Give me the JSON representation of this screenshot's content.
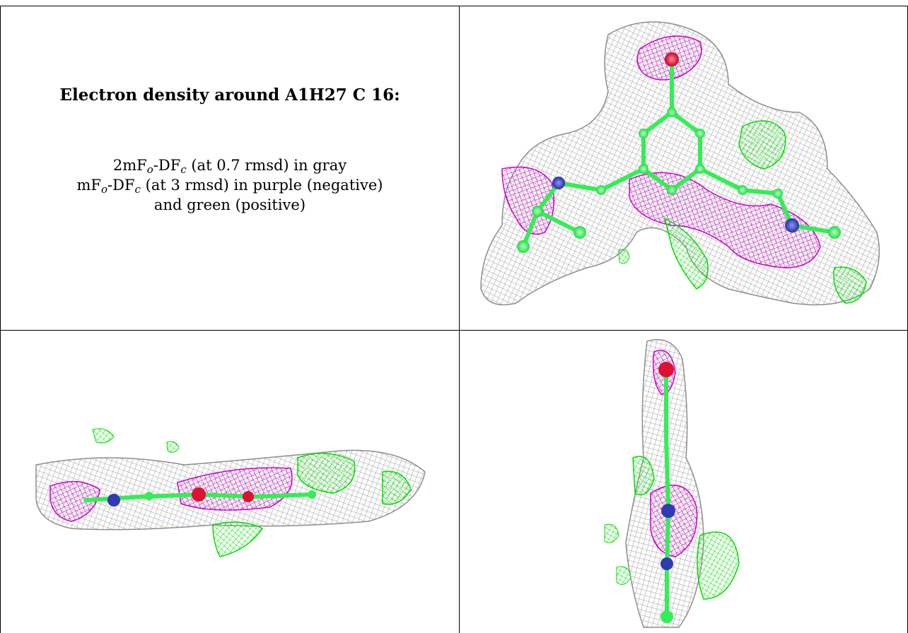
{
  "caption": {
    "title": "Electron density around A1H27 C 16:",
    "line1": {
      "a": "2mF",
      "sub1": "o",
      "b": "-DF",
      "sub2": "c",
      "c": " (at 0.7 rmsd) in gray"
    },
    "line2": {
      "a": "mF",
      "sub1": "o",
      "b": "-DF",
      "sub2": "c",
      "c": " (at 3 rmsd) in purple (negative)"
    },
    "line3": "and green (positive)"
  },
  "colors": {
    "map_2fofc": "#a0a0a0",
    "map_fofc_negative": "#cc00cc",
    "map_fofc_positive": "#00ee00",
    "carbon": "#33ff55",
    "nitrogen": "#3344cc",
    "oxygen": "#ff2244"
  },
  "panels": [
    {
      "name": "view-top-right",
      "content": "density map, face-on view"
    },
    {
      "name": "view-bottom-left",
      "content": "density map, edge-on view"
    },
    {
      "name": "view-bottom-right",
      "content": "density map, end-on view"
    }
  ]
}
